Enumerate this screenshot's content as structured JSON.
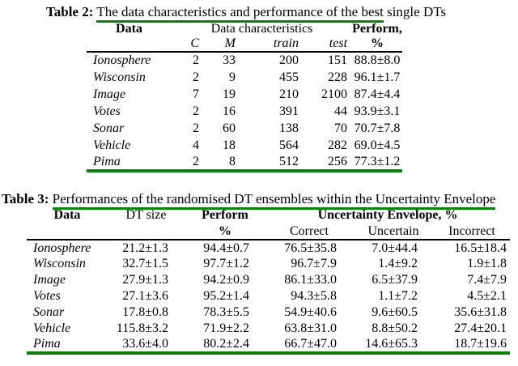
{
  "colors": {
    "accent_green": "#0e7e0e",
    "rule_black": "#000000"
  },
  "table2": {
    "title_prefix": "Table 2:",
    "title_underlined": "The data characteristics and performance of the best",
    "title_rest": "single DTs",
    "header": {
      "data": "Data",
      "group": "Data characteristics",
      "perform": "Perform,",
      "sub_c": "C",
      "sub_m": "M",
      "sub_train": "train",
      "sub_test": "test",
      "sub_percent": "%"
    },
    "rows": [
      [
        "Ionosphere",
        "2",
        "33",
        "200",
        "151",
        "88.8±8.0"
      ],
      [
        "Wisconsin",
        "2",
        "9",
        "455",
        "228",
        "96.1±1.7"
      ],
      [
        "Image",
        "7",
        "19",
        "210",
        "2100",
        "87.4±4.4"
      ],
      [
        "Votes",
        "2",
        "16",
        "391",
        "44",
        "93.9±3.1"
      ],
      [
        "Sonar",
        "2",
        "60",
        "138",
        "70",
        "70.7±7.8"
      ],
      [
        "Vehicle",
        "4",
        "18",
        "564",
        "282",
        "69.0±4.5"
      ],
      [
        "Pima",
        "2",
        "8",
        "512",
        "256",
        "77.3±1.2"
      ]
    ]
  },
  "table3": {
    "title_prefix": "Table 3:",
    "title_underlined": "Performances of the randomised DT ensembles within the Uncertainty Envelope",
    "header": {
      "data": "Data",
      "dt_size": "DT size",
      "perform": "Perform",
      "perform_sub": "%",
      "group": "Uncertainty Envelope, %",
      "sub_correct": "Correct",
      "sub_uncertain": "Uncertain",
      "sub_incorrect": "Incorrect"
    },
    "rows": [
      [
        "Ionosphere",
        "21.2±1.3",
        "94.4±0.7",
        "76.5±35.8",
        "7.0±44.4",
        "16.5±18.4"
      ],
      [
        "Wisconsin",
        "32.7±1.5",
        "97.7±1.2",
        "96.7±7.9",
        "1.4±9.2",
        "1.9±1.8"
      ],
      [
        "Image",
        "27.9±1.3",
        "94.2±0.9",
        "86.1±33.0",
        "6.5±37.9",
        "7.4±7.9"
      ],
      [
        "Votes",
        "27.1±3.6",
        "95.2±1.4",
        "94.3±5.8",
        "1.1±7.2",
        "4.5±2.1"
      ],
      [
        "Sonar",
        "17.8±0.8",
        "78.3±5.5",
        "54.9±40.6",
        "9.6±60.5",
        "35.6±31.8"
      ],
      [
        "Vehicle",
        "115.8±3.2",
        "71.9±2.2",
        "63.8±31.0",
        "8.8±50.2",
        "27.4±20.1"
      ],
      [
        "Pima",
        "33.6±4.0",
        "80.2±2.4",
        "66.7±47.0",
        "14.6±65.3",
        "18.7±19.6"
      ]
    ]
  }
}
